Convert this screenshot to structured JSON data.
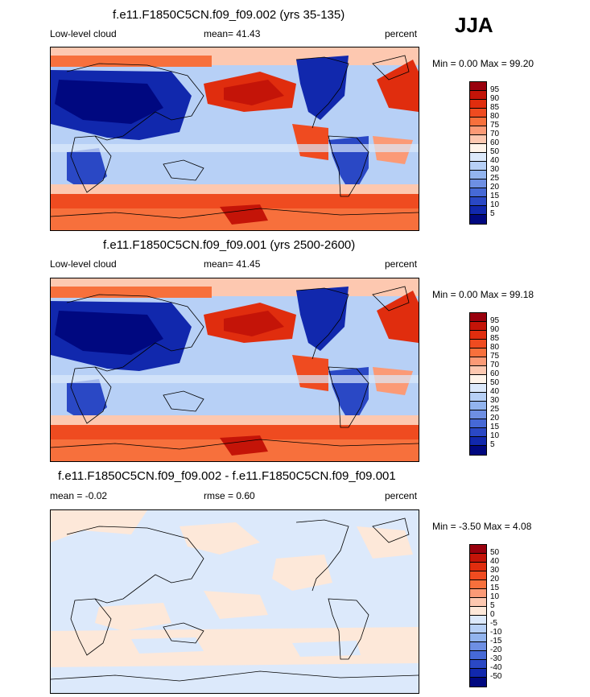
{
  "season": "JJA",
  "panels": [
    {
      "title": "f.e11.F1850C5CN.f09_f09.002 (yrs 35-135)",
      "left_label": "Low-level cloud",
      "center_label": "mean=  41.43",
      "right_label": "percent",
      "minmax": "Min =   0.00 Max =  99.20",
      "ticks": [
        "95",
        "90",
        "85",
        "80",
        "75",
        "70",
        "60",
        "50",
        "40",
        "30",
        "25",
        "20",
        "15",
        "10",
        "5"
      ],
      "colors": [
        "#99000d",
        "#c41408",
        "#e02d0e",
        "#ef4b20",
        "#f7703c",
        "#fb9a76",
        "#fdc8b0",
        "#fff4ea",
        "#dce9fb",
        "#b7d0f6",
        "#92b4ee",
        "#6e8fe3",
        "#4669d6",
        "#2a48c5",
        "#1128ad",
        "#000880"
      ]
    },
    {
      "title": "f.e11.F1850C5CN.f09_f09.001 (yrs 2500-2600)",
      "left_label": "Low-level cloud",
      "center_label": "mean=  41.45",
      "right_label": "percent",
      "minmax": "Min =   0.00 Max =  99.18",
      "ticks": [
        "95",
        "90",
        "85",
        "80",
        "75",
        "70",
        "60",
        "50",
        "40",
        "30",
        "25",
        "20",
        "15",
        "10",
        "5"
      ],
      "colors": [
        "#99000d",
        "#c41408",
        "#e02d0e",
        "#ef4b20",
        "#f7703c",
        "#fb9a76",
        "#fdc8b0",
        "#fff4ea",
        "#dce9fb",
        "#b7d0f6",
        "#92b4ee",
        "#6e8fe3",
        "#4669d6",
        "#2a48c5",
        "#1128ad",
        "#000880"
      ]
    },
    {
      "title": "f.e11.F1850C5CN.f09_f09.002 - f.e11.F1850C5CN.f09_f09.001",
      "left_label": "mean =  -0.02",
      "center_label": "rmse =   0.60",
      "right_label": "percent",
      "minmax": "Min =  -3.50 Max =   4.08",
      "ticks": [
        "50",
        "40",
        "30",
        "20",
        "15",
        "10",
        "5",
        "0",
        "-5",
        "-10",
        "-15",
        "-20",
        "-30",
        "-40",
        "-50"
      ],
      "colors": [
        "#99000d",
        "#c41408",
        "#e02d0e",
        "#ef4b20",
        "#f7703c",
        "#fb9a76",
        "#fdc8b0",
        "#fde8d9",
        "#dce9fb",
        "#b7d0f6",
        "#92b4ee",
        "#6e8fe3",
        "#4669d6",
        "#2a48c5",
        "#1128ad",
        "#000880"
      ]
    }
  ]
}
